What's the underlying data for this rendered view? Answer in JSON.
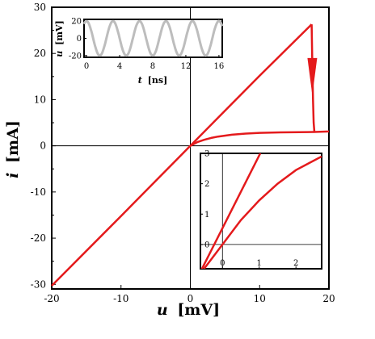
{
  "chart_data": [
    {
      "id": "main",
      "type": "line",
      "xlabel_symbol": "u",
      "xlabel_unit": "[mV]",
      "ylabel_symbol": "i",
      "ylabel_unit": "[mA]",
      "xlim": [
        -20,
        20
      ],
      "ylim": [
        -31,
        30
      ],
      "xticks": [
        -20,
        -10,
        0,
        10,
        20
      ],
      "yticks": [
        -30,
        -20,
        -10,
        0,
        10,
        20,
        30
      ],
      "grid": false,
      "line_color": "#e41a1c",
      "series": [
        {
          "points": [
            [
              -20,
              -30.3
            ],
            [
              -10,
              -15.2
            ],
            [
              0,
              0
            ],
            [
              10,
              15.2
            ],
            [
              17.5,
              26.3
            ]
          ]
        },
        {
          "points": [
            [
              17.5,
              26.3
            ],
            [
              17.6,
              18
            ],
            [
              17.7,
              10
            ],
            [
              17.8,
              5
            ],
            [
              17.9,
              3.0
            ],
            [
              20,
              3.1
            ]
          ]
        },
        {
          "points": [
            [
              0,
              0
            ],
            [
              1,
              0.8
            ],
            [
              2,
              1.3
            ],
            [
              3,
              1.7
            ],
            [
              4,
              2.0
            ],
            [
              6,
              2.4
            ],
            [
              8,
              2.65
            ],
            [
              10,
              2.8
            ],
            [
              13,
              2.9
            ],
            [
              17.9,
              3.0
            ]
          ]
        }
      ],
      "arrow": {
        "x": 17.6,
        "y_from": 19,
        "y_to": 11
      }
    },
    {
      "id": "inset-top",
      "type": "line",
      "xlabel_symbol": "t",
      "xlabel_unit": "[ns]",
      "ylabel_symbol": "u",
      "ylabel_unit": "[mV]",
      "xlim": [
        -0.3,
        16.4
      ],
      "ylim": [
        -22,
        22
      ],
      "xticks": [
        0,
        4,
        8,
        12,
        16
      ],
      "yticks": [
        -20,
        0,
        20
      ],
      "line_color": "#bdbdbd",
      "series": [
        {
          "function": "sine",
          "amplitude": 20,
          "period": 3.2,
          "t_start": -0.3,
          "t_end": 16.4
        }
      ]
    },
    {
      "id": "inset-bottom",
      "type": "line",
      "xlim": [
        -0.6,
        2.7
      ],
      "ylim": [
        -0.8,
        3.0
      ],
      "xticks": [
        0,
        1,
        2
      ],
      "yticks": [
        -1,
        0,
        1,
        2,
        3
      ],
      "line_color": "#e41a1c",
      "series": [
        {
          "points": [
            [
              -0.6,
              -0.9
            ],
            [
              1.05,
              3.05
            ]
          ]
        },
        {
          "points": [
            [
              -0.5,
              -0.8
            ],
            [
              0,
              0
            ],
            [
              0.5,
              0.8
            ],
            [
              1,
              1.45
            ],
            [
              1.5,
              2.0
            ],
            [
              2,
              2.45
            ],
            [
              2.7,
              2.9
            ]
          ]
        }
      ]
    }
  ]
}
